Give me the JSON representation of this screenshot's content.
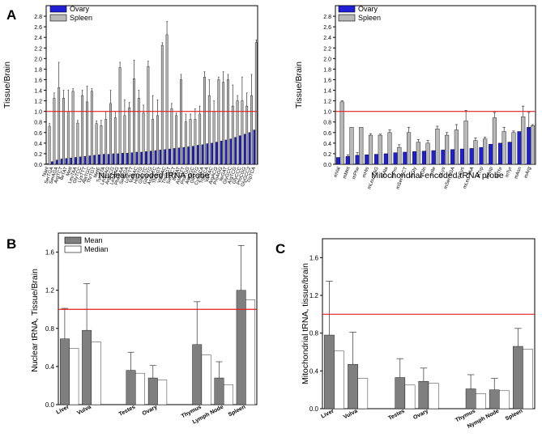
{
  "chart_data": [
    {
      "id": "A1",
      "type": "bar",
      "panel_label": "A",
      "xlabel": "Nuclear-encoded tRNA probe",
      "ylabel": "Tissue/Brain",
      "ylim": [
        0,
        3.0
      ],
      "yticks": [
        0.0,
        0.2,
        0.4,
        0.6,
        0.8,
        1.0,
        1.2,
        1.4,
        1.6,
        1.8,
        2.0,
        2.2,
        2.4,
        2.6,
        2.8
      ],
      "reference_line": 1.0,
      "legend": [
        "Ovary",
        "Spleen"
      ],
      "categories": [
        "Nanl",
        "SerTGA",
        "SerAGA",
        "ArgTCT",
        "IleTAT",
        "MetI",
        "LeuTAA",
        "GlyTCC",
        "LysTTT",
        "AlaTGC",
        "ThrTGT",
        "MetE",
        "TyrGTA",
        "LeuCAG",
        "ArgCCG",
        "LeuAAG",
        "PheGAA",
        "SerCGA",
        "LysCTT",
        "ValAAC",
        "HisGTG",
        "GluCTC",
        "GlnCTG",
        "AspGTC",
        "ThrAGT",
        "ValCAC",
        "ThrCGT",
        "SerGCT",
        "IleAAT",
        "AsnGTT",
        "ProTGG",
        "AlaCGC",
        "GlnTTG",
        "CysGCA",
        "TrpCCA",
        "ValTAC",
        "ArgACG",
        "ProAGG",
        "IleGAT",
        "GlyGCC",
        "ArgTCG",
        "GlyCCC",
        "ProCGG",
        "GlyGCC2",
        "TrpTCA"
      ],
      "series": [
        {
          "name": "Ovary",
          "values": [
            0.01,
            0.05,
            0.08,
            0.1,
            0.11,
            0.12,
            0.13,
            0.14,
            0.15,
            0.16,
            0.17,
            0.18,
            0.19,
            0.19,
            0.2,
            0.2,
            0.21,
            0.21,
            0.22,
            0.23,
            0.23,
            0.24,
            0.25,
            0.26,
            0.27,
            0.28,
            0.29,
            0.3,
            0.31,
            0.32,
            0.33,
            0.34,
            0.36,
            0.37,
            0.39,
            0.4,
            0.42,
            0.44,
            0.46,
            0.48,
            0.51,
            0.54,
            0.57,
            0.6,
            0.65
          ]
        },
        {
          "name": "Spleen",
          "values": [
            0.72,
            1.25,
            1.45,
            1.25,
            1.0,
            1.38,
            0.78,
            1.3,
            1.18,
            1.38,
            0.77,
            0.73,
            0.85,
            1.15,
            0.88,
            1.83,
            0.92,
            1.07,
            1.62,
            1.25,
            0.97,
            1.85,
            0.85,
            0.92,
            2.25,
            2.45,
            1.05,
            0.92,
            1.6,
            0.8,
            0.85,
            0.85,
            0.95,
            1.65,
            1.3,
            1.0,
            1.6,
            1.55,
            1.6,
            1.1,
            1.2,
            1.2,
            1.1,
            1.3,
            2.3
          ]
        }
      ],
      "errors": [
        {
          "name": "Ovary",
          "values": [
            0,
            0,
            0,
            0,
            0,
            0,
            0,
            0,
            0,
            0,
            0,
            0,
            0,
            0,
            0,
            0,
            0,
            0,
            0,
            0,
            0,
            0,
            0,
            0,
            0,
            0,
            0,
            0,
            0,
            0,
            0,
            0,
            0,
            0,
            0,
            0,
            0,
            0,
            0,
            0,
            0,
            0,
            0,
            0,
            0
          ]
        },
        {
          "name": "Spleen",
          "values": [
            0.05,
            0.1,
            0.48,
            0.15,
            0.4,
            0.05,
            0.05,
            0.1,
            0.3,
            0.05,
            0.05,
            0.1,
            0.15,
            0.25,
            0.12,
            0.1,
            0.3,
            0.1,
            0.35,
            0.15,
            0.15,
            0.1,
            0.45,
            0.3,
            0.05,
            0.25,
            0.1,
            0.05,
            0.1,
            0.15,
            0.1,
            0.2,
            0.15,
            0.1,
            0.3,
            0.2,
            0.05,
            0.2,
            0.1,
            0.4,
            0.1,
            0.45,
            0.25,
            0.4,
            0.05
          ]
        }
      ]
    },
    {
      "id": "A2",
      "type": "bar",
      "panel_label": "",
      "xlabel": "Mitochondrial-encoded tRNA probe",
      "ylabel": "Tissue/Brain",
      "ylim": [
        0,
        3.0
      ],
      "yticks": [
        0.0,
        0.2,
        0.4,
        0.6,
        0.8,
        1.0,
        1.2,
        1.4,
        1.6,
        1.8,
        2.0,
        2.2,
        2.4,
        2.6,
        2.8
      ],
      "reference_line": 1.0,
      "legend": [
        "Ovary",
        "Spleen"
      ],
      "categories": [
        "mVal",
        "mMet",
        "mPhe",
        "mHis",
        "mLeu-TAG",
        "mAla",
        "mPro",
        "mSer-GCT",
        "mGly",
        "mGln",
        "mIle",
        "mLys",
        "mSer-TGA",
        "mCys",
        "mLeu-TAA",
        "mTrp",
        "mAsp",
        "mThr",
        "mTyr",
        "mAsn",
        "mArg"
      ],
      "series": [
        {
          "name": "Ovary",
          "values": [
            0.13,
            0.15,
            0.17,
            0.18,
            0.19,
            0.2,
            0.22,
            0.23,
            0.24,
            0.25,
            0.26,
            0.27,
            0.28,
            0.29,
            0.3,
            0.32,
            0.38,
            0.4,
            0.42,
            0.62,
            0.7
          ]
        },
        {
          "name": "Spleen",
          "values": [
            1.18,
            0.7,
            0.7,
            0.55,
            0.55,
            0.6,
            0.32,
            0.6,
            0.42,
            0.4,
            0.67,
            0.55,
            0.65,
            0.82,
            0.45,
            0.48,
            0.88,
            0.62,
            0.6,
            0.9,
            0.73
          ]
        }
      ],
      "errors": [
        {
          "name": "Ovary",
          "values": [
            0,
            0.03,
            0.05,
            0,
            0,
            0,
            0,
            0,
            0,
            0,
            0,
            0,
            0,
            0,
            0,
            0,
            0,
            0,
            0,
            0,
            0.28
          ]
        },
        {
          "name": "Spleen",
          "values": [
            0.02,
            0,
            0,
            0.03,
            0.02,
            0.05,
            0.05,
            0.1,
            0.05,
            0.05,
            0.05,
            0.05,
            0.1,
            0.2,
            0.05,
            0.03,
            0.1,
            0.08,
            0.03,
            0.2,
            0.02
          ]
        }
      ]
    },
    {
      "id": "B",
      "type": "bar",
      "panel_label": "B",
      "xlabel": "",
      "ylabel": "Nuclear tRNA, Tissue/Brain",
      "ylim": [
        0,
        1.8
      ],
      "yticks": [
        0.0,
        0.4,
        0.8,
        1.2,
        1.6
      ],
      "reference_line": 1.0,
      "legend": [
        "Mean",
        "Median"
      ],
      "categories": [
        "Liver",
        "Vulva",
        "",
        "Testes",
        "Ovary",
        "",
        "Thymus",
        "Lymph Node",
        "Spleen"
      ],
      "series": [
        {
          "name": "Mean",
          "values": [
            0.69,
            0.78,
            null,
            0.36,
            0.28,
            null,
            0.63,
            0.28,
            1.2
          ]
        },
        {
          "name": "Median",
          "values": [
            0.59,
            0.66,
            null,
            0.33,
            0.26,
            null,
            0.52,
            0.21,
            1.1
          ]
        }
      ],
      "errors": [
        {
          "name": "Mean",
          "values": [
            0.32,
            0.49,
            null,
            0.19,
            0.13,
            null,
            0.45,
            0.17,
            0.47
          ]
        }
      ]
    },
    {
      "id": "C",
      "type": "bar",
      "panel_label": "C",
      "xlabel": "",
      "ylabel": "Mitochondrial tRNA, tissue/brain",
      "ylim": [
        0,
        1.8
      ],
      "yticks": [
        0.0,
        0.4,
        0.8,
        1.2,
        1.6
      ],
      "reference_line": 1.0,
      "legend": [],
      "categories": [
        "Liver",
        "Vulva",
        "",
        "Testes",
        "Ovary",
        "",
        "Thymus",
        "Nymph Node",
        "Spleen"
      ],
      "series": [
        {
          "name": "Mean",
          "values": [
            0.78,
            0.47,
            null,
            0.33,
            0.29,
            null,
            0.21,
            0.2,
            0.66
          ]
        },
        {
          "name": "Median",
          "values": [
            0.61,
            0.32,
            null,
            0.25,
            0.27,
            null,
            0.16,
            0.19,
            0.63
          ]
        }
      ],
      "errors": [
        {
          "name": "Mean",
          "values": [
            0.57,
            0.34,
            null,
            0.2,
            0.14,
            null,
            0.15,
            0.12,
            0.19
          ]
        }
      ]
    }
  ],
  "colors": {
    "ovary": "#1f1fd6",
    "spleen": "#b8b8b8",
    "mean": "#7f7f7f",
    "median": "#ffffff",
    "reference": "#e02020",
    "error": "#333333"
  }
}
